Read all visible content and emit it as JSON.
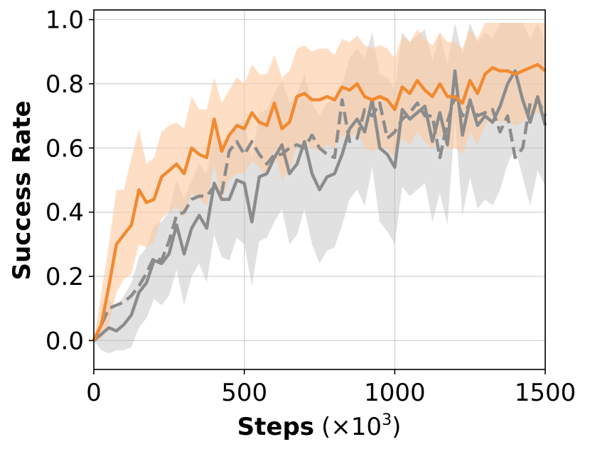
{
  "chart_data": {
    "type": "line",
    "title": "",
    "xlabel": "Steps",
    "xlabel_unit": "(×10",
    "xlabel_unit_exp": "3",
    "xlabel_unit_close": ")",
    "ylabel": "Success Rate",
    "xlim": [
      0,
      1500
    ],
    "ylim": [
      -0.09,
      1.03
    ],
    "xticks": [
      0,
      500,
      1000,
      1500
    ],
    "yticks": [
      0.0,
      0.2,
      0.4,
      0.6,
      0.8,
      1.0
    ],
    "xtick_labels": [
      "0",
      "500",
      "1000",
      "1500"
    ],
    "ytick_labels": [
      "0.0",
      "0.2",
      "0.4",
      "0.6",
      "0.8",
      "1.0"
    ],
    "grid": true,
    "legend": "none",
    "colors": {
      "orange": "#f28a30",
      "orange_band": "#fdc9a0",
      "gray_solid": "#8c8c8c",
      "gray_dashed": "#8c8c8c",
      "gray_band": "#bdbdbd",
      "grid": "#d0d0d0"
    },
    "x": [
      0,
      25,
      50,
      75,
      100,
      125,
      150,
      175,
      200,
      225,
      250,
      275,
      300,
      325,
      350,
      375,
      400,
      425,
      450,
      475,
      500,
      525,
      550,
      575,
      600,
      625,
      650,
      675,
      700,
      725,
      750,
      775,
      800,
      825,
      850,
      875,
      900,
      925,
      950,
      975,
      1000,
      1025,
      1050,
      1075,
      1100,
      1125,
      1150,
      1175,
      1200,
      1225,
      1250,
      1275,
      1300,
      1325,
      1350,
      1375,
      1400,
      1425,
      1450,
      1475,
      1500
    ],
    "series": [
      {
        "style": "solid",
        "color": "orange",
        "values": [
          0.0,
          0.05,
          0.17,
          0.3,
          0.33,
          0.36,
          0.47,
          0.43,
          0.44,
          0.51,
          0.53,
          0.55,
          0.52,
          0.6,
          0.58,
          0.57,
          0.69,
          0.59,
          0.64,
          0.67,
          0.66,
          0.71,
          0.68,
          0.67,
          0.74,
          0.66,
          0.68,
          0.76,
          0.77,
          0.75,
          0.75,
          0.76,
          0.75,
          0.79,
          0.78,
          0.8,
          0.76,
          0.75,
          0.76,
          0.75,
          0.72,
          0.79,
          0.77,
          0.81,
          0.78,
          0.76,
          0.8,
          0.76,
          0.76,
          0.74,
          0.81,
          0.77,
          0.83,
          0.85,
          0.84,
          0.84,
          0.83,
          0.84,
          0.85,
          0.86,
          0.84
        ],
        "upper": [
          0.0,
          0.15,
          0.3,
          0.47,
          0.47,
          0.57,
          0.66,
          0.55,
          0.57,
          0.65,
          0.67,
          0.68,
          0.66,
          0.76,
          0.72,
          0.72,
          0.82,
          0.74,
          0.78,
          0.82,
          0.8,
          0.86,
          0.83,
          0.83,
          0.89,
          0.82,
          0.84,
          0.91,
          0.92,
          0.9,
          0.91,
          0.91,
          0.89,
          0.94,
          0.93,
          0.95,
          0.92,
          0.91,
          0.92,
          0.91,
          0.88,
          0.95,
          0.93,
          0.97,
          0.94,
          0.92,
          0.96,
          0.93,
          0.93,
          0.91,
          0.97,
          0.94,
          0.99,
          0.99,
          0.99,
          0.99,
          0.99,
          0.99,
          0.99,
          0.99,
          0.99
        ],
        "lower": [
          0.0,
          0.0,
          0.05,
          0.15,
          0.19,
          0.21,
          0.3,
          0.29,
          0.31,
          0.38,
          0.4,
          0.42,
          0.38,
          0.46,
          0.44,
          0.42,
          0.55,
          0.44,
          0.5,
          0.52,
          0.52,
          0.56,
          0.54,
          0.51,
          0.59,
          0.5,
          0.53,
          0.61,
          0.62,
          0.6,
          0.59,
          0.61,
          0.6,
          0.64,
          0.63,
          0.65,
          0.6,
          0.59,
          0.6,
          0.6,
          0.57,
          0.63,
          0.61,
          0.65,
          0.62,
          0.6,
          0.64,
          0.6,
          0.6,
          0.58,
          0.65,
          0.61,
          0.67,
          0.7,
          0.68,
          0.68,
          0.67,
          0.68,
          0.7,
          0.71,
          0.69
        ]
      },
      {
        "style": "solid",
        "color": "gray_solid",
        "values": [
          0.0,
          0.02,
          0.04,
          0.03,
          0.05,
          0.08,
          0.15,
          0.18,
          0.25,
          0.24,
          0.27,
          0.36,
          0.27,
          0.35,
          0.39,
          0.35,
          0.49,
          0.44,
          0.44,
          0.5,
          0.49,
          0.37,
          0.51,
          0.52,
          0.57,
          0.61,
          0.52,
          0.55,
          0.62,
          0.52,
          0.47,
          0.51,
          0.52,
          0.58,
          0.66,
          0.69,
          0.65,
          0.75,
          0.6,
          0.58,
          0.54,
          0.72,
          0.69,
          0.71,
          0.73,
          0.62,
          0.71,
          0.61,
          0.84,
          0.64,
          0.75,
          0.67,
          0.7,
          0.68,
          0.73,
          0.8,
          0.84,
          0.75,
          0.68,
          0.76,
          0.67
        ],
        "upper": [
          0.0,
          0.07,
          0.13,
          0.1,
          0.14,
          0.18,
          0.26,
          0.29,
          0.36,
          0.37,
          0.4,
          0.5,
          0.44,
          0.5,
          0.55,
          0.52,
          0.65,
          0.62,
          0.63,
          0.68,
          0.68,
          0.57,
          0.71,
          0.72,
          0.77,
          0.81,
          0.74,
          0.77,
          0.83,
          0.74,
          0.7,
          0.74,
          0.75,
          0.8,
          0.88,
          0.91,
          0.88,
          0.96,
          0.83,
          0.82,
          0.78,
          0.96,
          0.93,
          0.95,
          0.97,
          0.87,
          0.96,
          0.86,
          0.99,
          0.89,
          0.99,
          0.93,
          0.96,
          0.94,
          0.99,
          0.99,
          0.99,
          0.99,
          0.94,
          0.99,
          0.93
        ],
        "lower": [
          0.0,
          -0.03,
          -0.04,
          -0.03,
          -0.03,
          -0.02,
          0.04,
          0.07,
          0.13,
          0.11,
          0.14,
          0.22,
          0.11,
          0.2,
          0.24,
          0.18,
          0.33,
          0.26,
          0.25,
          0.32,
          0.3,
          0.17,
          0.31,
          0.32,
          0.37,
          0.41,
          0.3,
          0.33,
          0.41,
          0.3,
          0.24,
          0.28,
          0.29,
          0.36,
          0.44,
          0.47,
          0.42,
          0.54,
          0.37,
          0.34,
          0.3,
          0.48,
          0.45,
          0.47,
          0.49,
          0.37,
          0.46,
          0.36,
          0.69,
          0.39,
          0.51,
          0.41,
          0.44,
          0.42,
          0.47,
          0.55,
          0.6,
          0.51,
          0.42,
          0.53,
          0.48
        ]
      },
      {
        "style": "dashed",
        "color": "gray_dashed",
        "values": [
          0.0,
          0.05,
          0.1,
          0.11,
          0.12,
          0.14,
          0.17,
          0.21,
          0.26,
          0.25,
          0.31,
          0.39,
          0.4,
          0.44,
          0.45,
          0.45,
          0.48,
          0.46,
          0.59,
          0.62,
          0.58,
          0.62,
          0.58,
          0.55,
          0.58,
          0.58,
          0.6,
          0.61,
          0.6,
          0.64,
          0.6,
          0.58,
          0.57,
          0.75,
          0.62,
          0.63,
          0.72,
          0.7,
          0.74,
          0.63,
          0.65,
          0.69,
          0.71,
          0.74,
          0.7,
          0.7,
          0.57,
          0.68,
          0.76,
          0.7,
          0.74,
          0.7,
          0.71,
          0.72,
          0.65,
          0.7,
          0.57,
          0.6,
          0.74,
          0.75,
          0.7
        ]
      }
    ]
  }
}
